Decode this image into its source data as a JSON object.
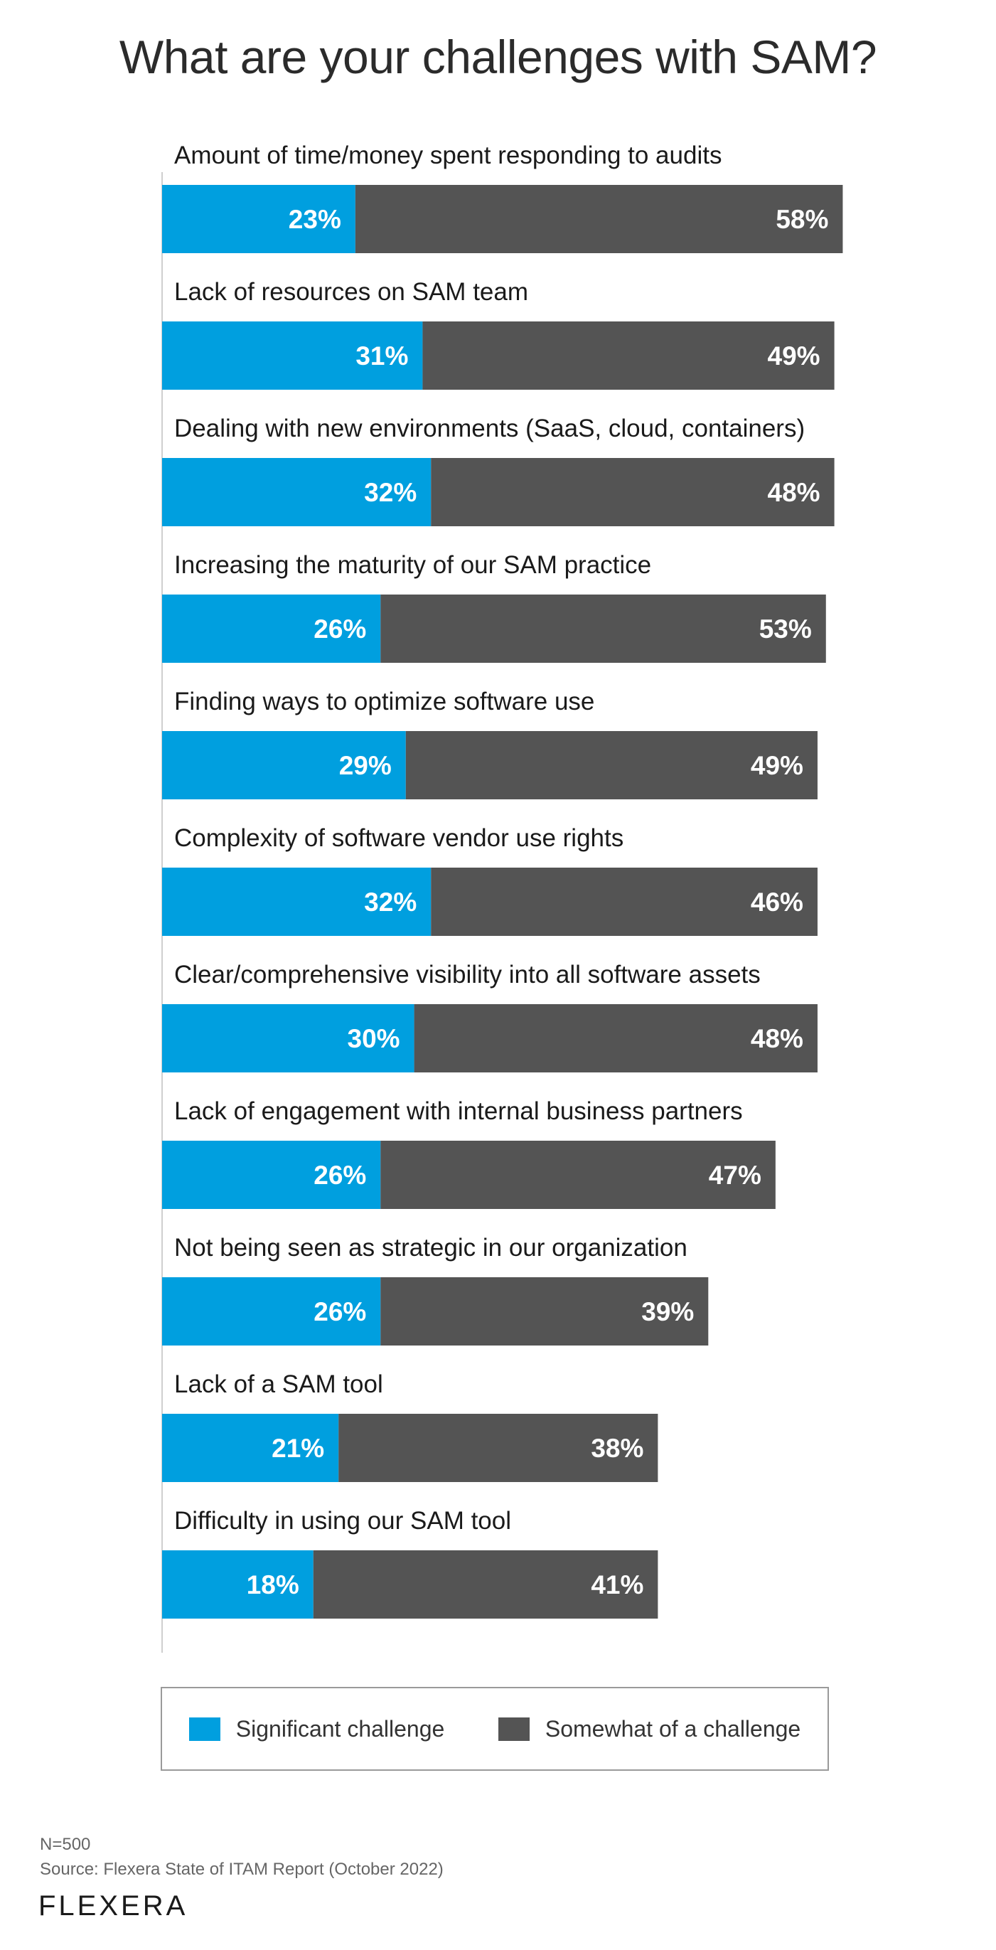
{
  "chart_data": {
    "type": "bar",
    "orientation": "horizontal",
    "stacked": true,
    "title": "What are your challenges with SAM?",
    "categories": [
      "Amount of time/money spent responding to audits",
      "Lack of resources on SAM team",
      "Dealing with new environments (SaaS, cloud, containers)",
      "Increasing the maturity of our SAM practice",
      "Finding ways to optimize software use",
      "Complexity of software vendor use rights",
      "Clear/comprehensive visibility into all software assets",
      "Lack of engagement with internal business partners",
      "Not being seen as strategic in our organization",
      "Lack of a SAM tool",
      "Difficulty in using our SAM tool"
    ],
    "series": [
      {
        "name": "Significant challenge",
        "color": "#009fdf",
        "values": [
          23,
          31,
          32,
          26,
          29,
          32,
          30,
          26,
          26,
          21,
          18
        ],
        "labels": [
          "23%",
          "31%",
          "32%",
          "26%",
          "29%",
          "32%",
          "30%",
          "26%",
          "26%",
          "21%",
          "18%"
        ]
      },
      {
        "name": "Somewhat of a challenge",
        "color": "#545454",
        "values": [
          58,
          49,
          48,
          53,
          49,
          46,
          48,
          47,
          39,
          38,
          41
        ],
        "labels": [
          "58%",
          "49%",
          "48%",
          "53%",
          "49%",
          "46%",
          "48%",
          "47%",
          "39%",
          "38%",
          "41%"
        ]
      }
    ],
    "xlim": [
      0,
      100
    ],
    "grid": false,
    "legend_position": "bottom"
  },
  "footnote": {
    "n": "N=500",
    "source": "Source: Flexera State of ITAM Report (October 2022)"
  },
  "logo": {
    "text": "FLEXERA"
  }
}
